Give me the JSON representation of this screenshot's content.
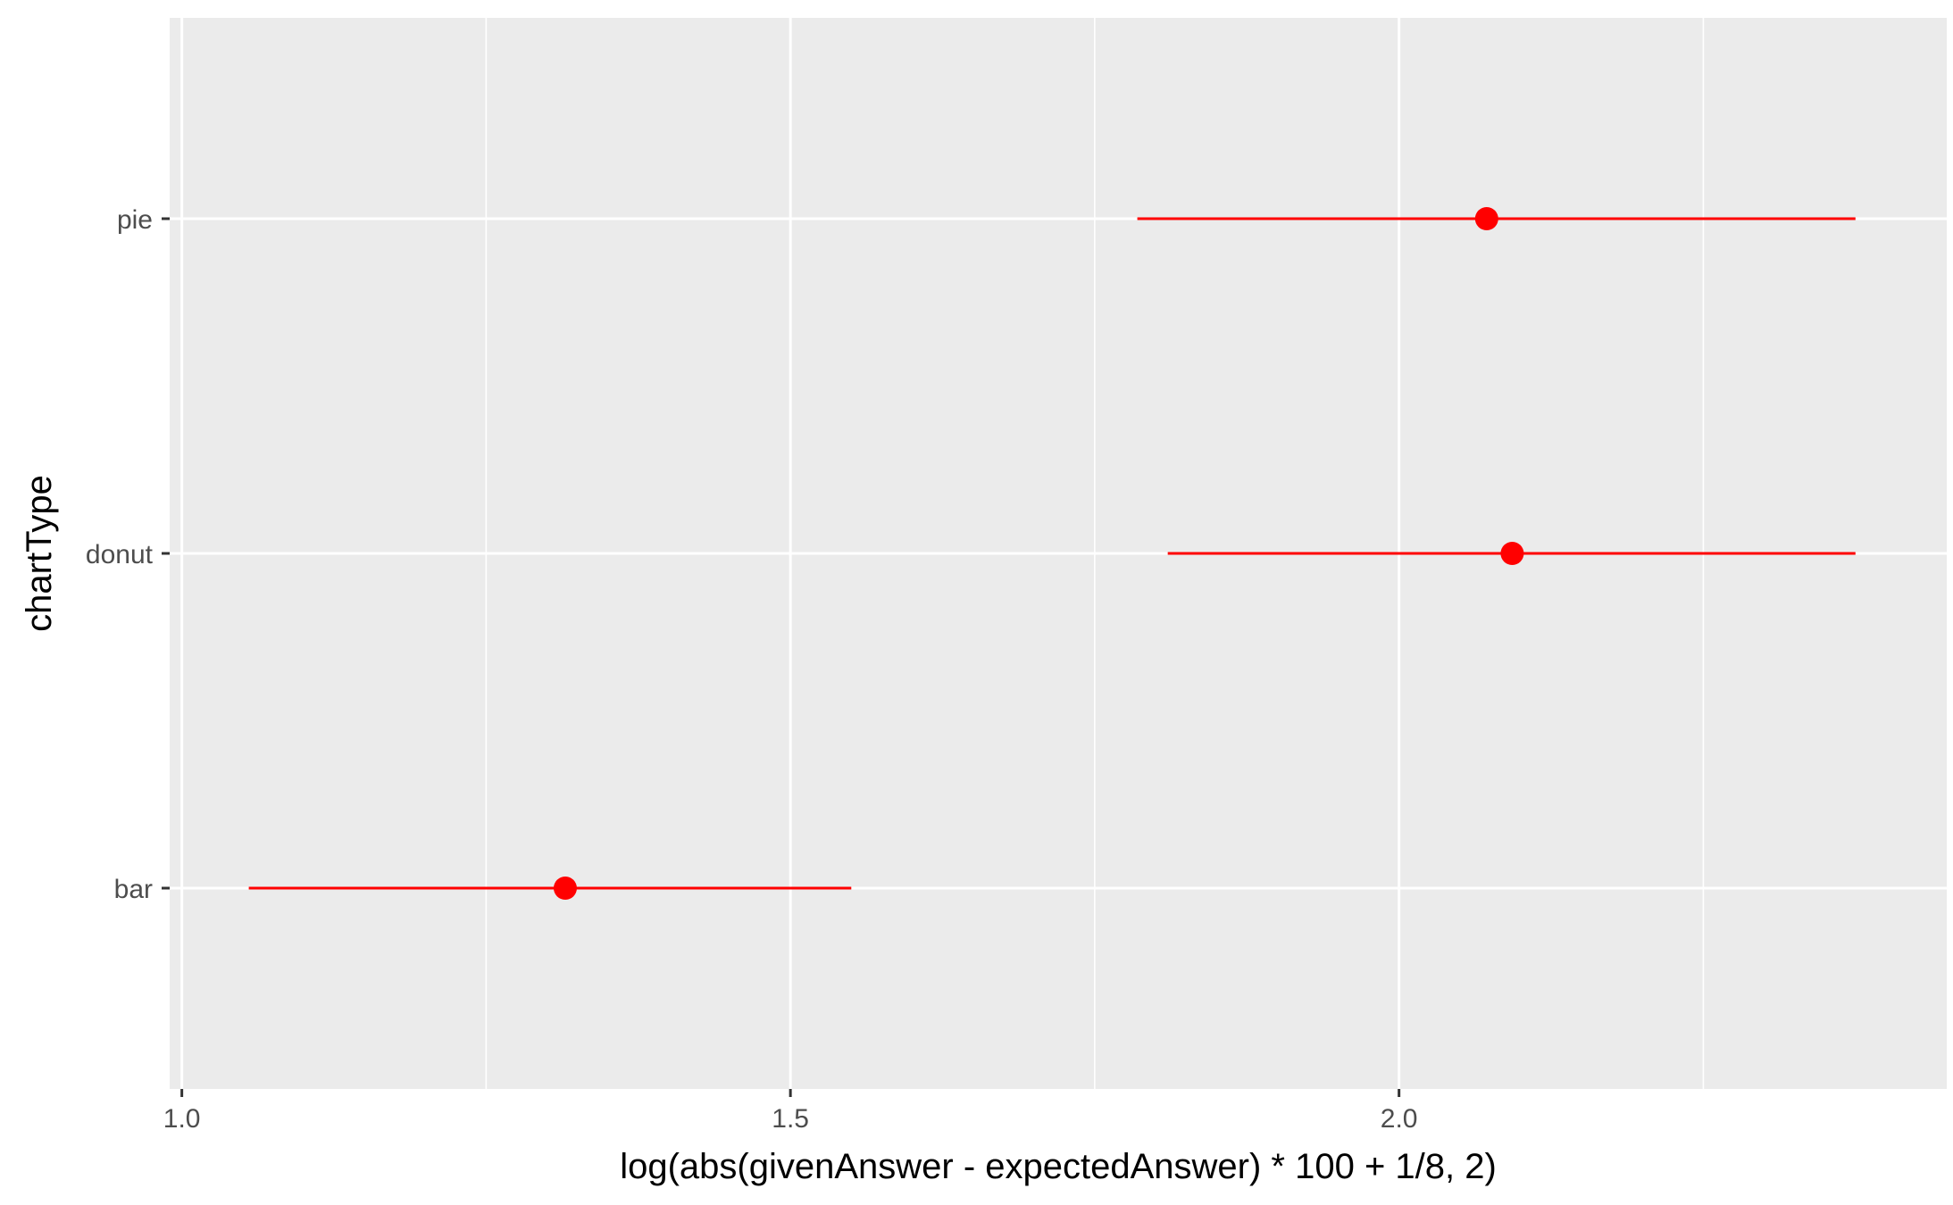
{
  "chart_data": {
    "type": "scatter",
    "xlabel": "log(abs(givenAnswer - expectedAnswer) * 100 + 1/8, 2)",
    "ylabel": "chartType",
    "xlim": [
      0.99,
      2.45
    ],
    "x_ticks": [
      1.0,
      1.5,
      2.0
    ],
    "x_tick_labels": [
      "1.0",
      "1.5",
      "2.0"
    ],
    "categories": [
      "bar",
      "donut",
      "pie"
    ],
    "grid": true,
    "points": [
      {
        "category": "pie",
        "x": 2.072,
        "lower": 1.785,
        "upper": 2.375
      },
      {
        "category": "donut",
        "x": 2.093,
        "lower": 1.81,
        "upper": 2.375
      },
      {
        "category": "bar",
        "x": 1.315,
        "lower": 1.055,
        "upper": 1.55
      }
    ],
    "colors": {
      "panel": "#ebebeb",
      "grid": "#ffffff",
      "point": "#ff0000",
      "axis_text": "#4d4d4d",
      "tick": "#333333"
    }
  }
}
